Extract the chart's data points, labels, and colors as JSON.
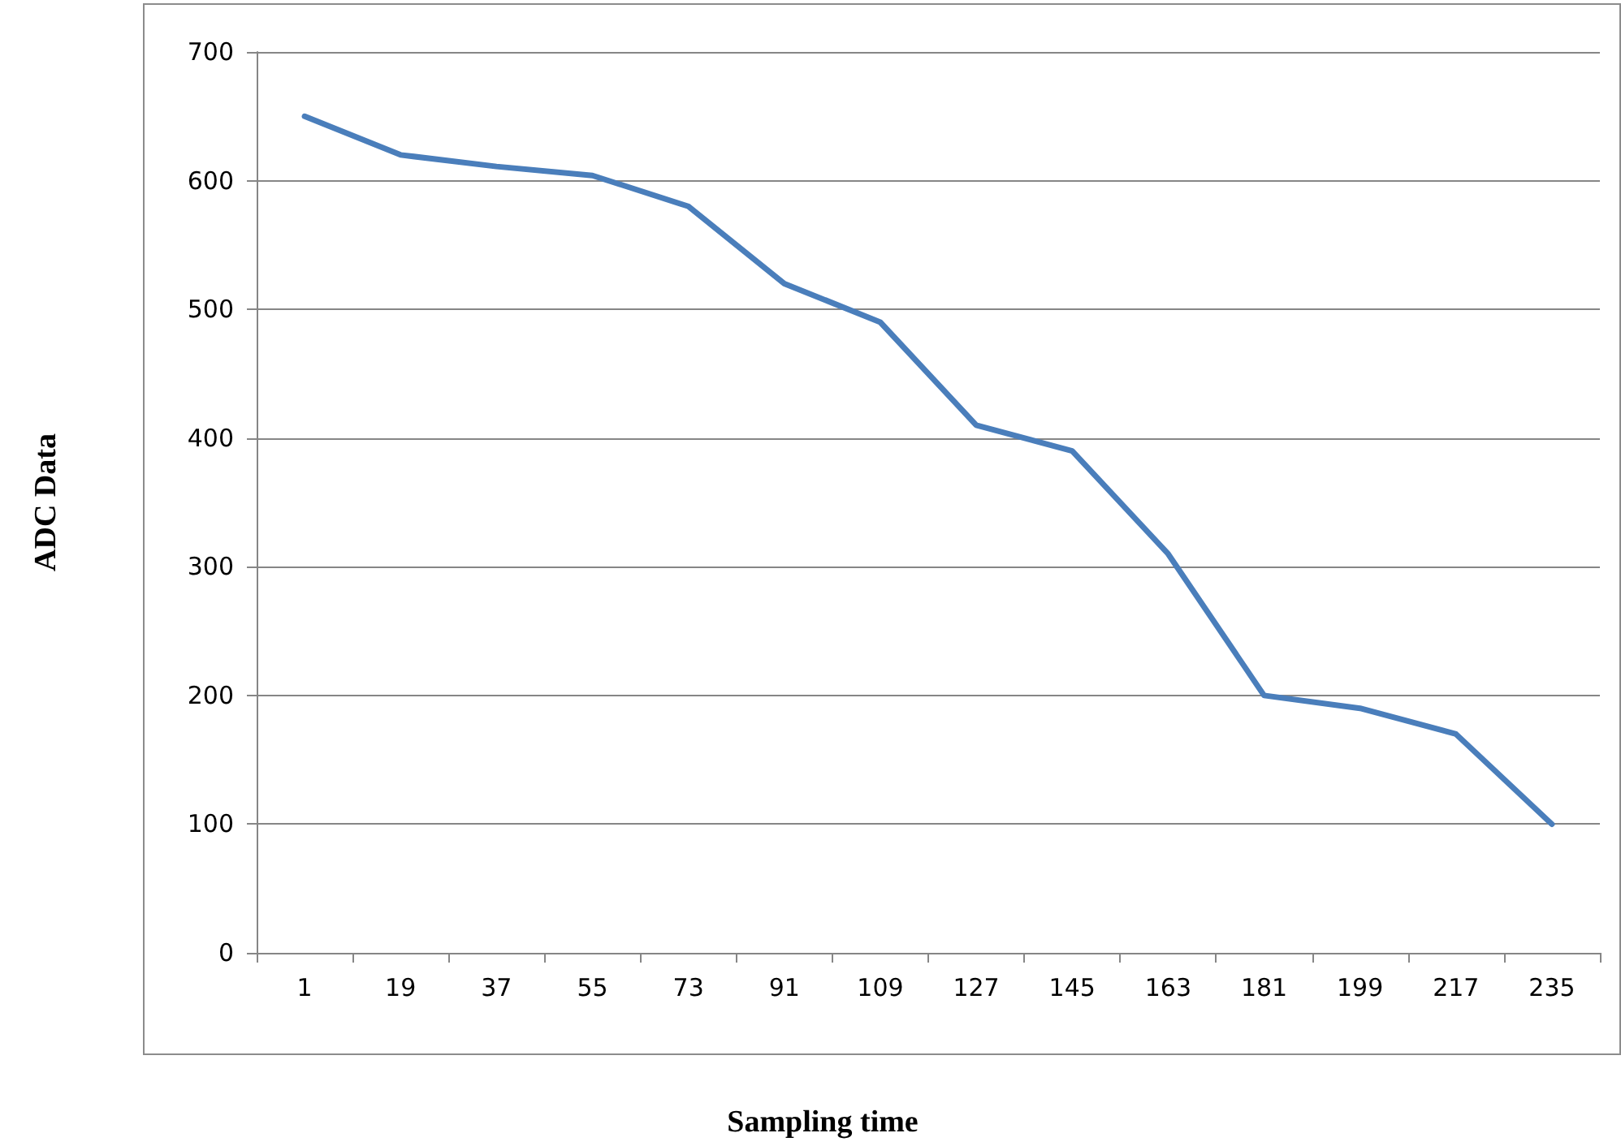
{
  "chart_data": {
    "type": "line",
    "xlabel": "Sampling time",
    "ylabel": "ADC Data",
    "categories": [
      "1",
      "19",
      "37",
      "55",
      "73",
      "91",
      "109",
      "127",
      "145",
      "163",
      "181",
      "199",
      "217",
      "235"
    ],
    "series": [
      {
        "color": "#4a7ebb",
        "values": [
          650,
          620,
          611,
          604,
          580,
          520,
          490,
          410,
          390,
          310,
          200,
          190,
          170,
          100
        ]
      }
    ],
    "ylim": [
      0,
      700
    ],
    "yticks": [
      0,
      100,
      200,
      300,
      400,
      500,
      600,
      700
    ],
    "grid": "y",
    "marker": "none",
    "line_style": "solid"
  }
}
